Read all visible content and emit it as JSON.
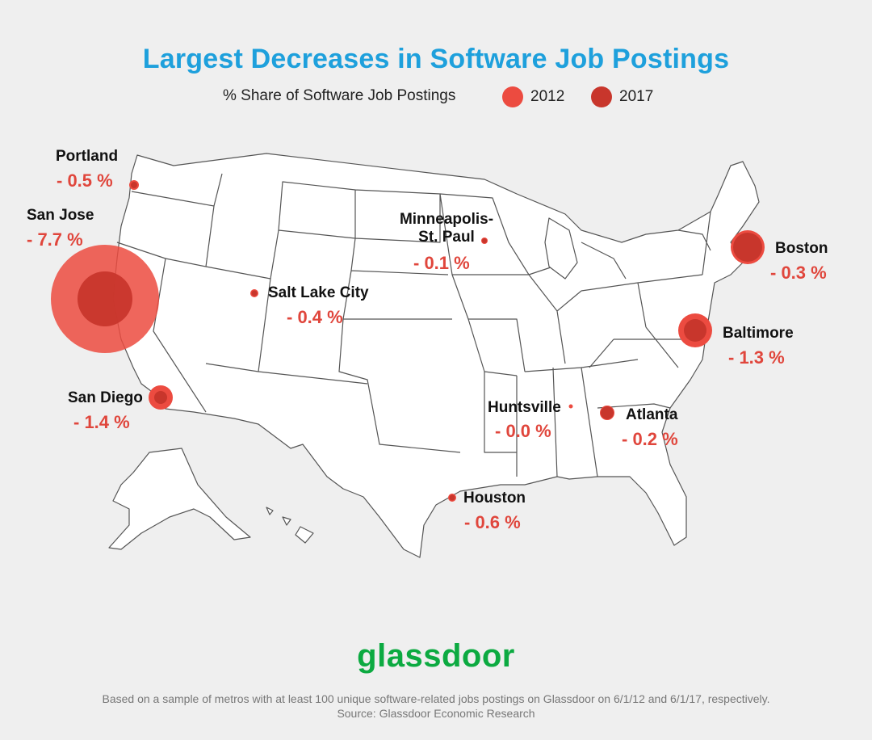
{
  "title": "Largest Decreases in Software Job Postings",
  "legend": {
    "label": "% Share of Software Job Postings",
    "items": [
      {
        "name": "2012",
        "color": "#ec4b40"
      },
      {
        "name": "2017",
        "color": "#c8362c"
      }
    ]
  },
  "map_data": {
    "region": "United States",
    "metric": "% change in share of software job postings, 2012 to 2017",
    "cities": [
      {
        "name": "Portland",
        "change": "- 0.5 %"
      },
      {
        "name": "San Jose",
        "change": "- 7.7 %"
      },
      {
        "name": "Minneapolis-\nSt. Paul",
        "change": "- 0.1 %"
      },
      {
        "name": "Salt Lake City",
        "change": "- 0.4 %"
      },
      {
        "name": "Boston",
        "change": "- 0.3 %"
      },
      {
        "name": "Baltimore",
        "change": "- 1.3 %"
      },
      {
        "name": "San Diego",
        "change": "- 1.4 %"
      },
      {
        "name": "Huntsville",
        "change": "- 0.0 %"
      },
      {
        "name": "Atlanta",
        "change": "- 0.2 %"
      },
      {
        "name": "Houston",
        "change": "- 0.6 %"
      }
    ]
  },
  "logo": "glassdoor",
  "footnote": {
    "line1": "Based on a sample of metros with at least 100 unique software-related jobs postings on Glassdoor on 6/1/12 and 6/1/17, respectively.",
    "line2": "Source: Glassdoor Economic Research"
  }
}
